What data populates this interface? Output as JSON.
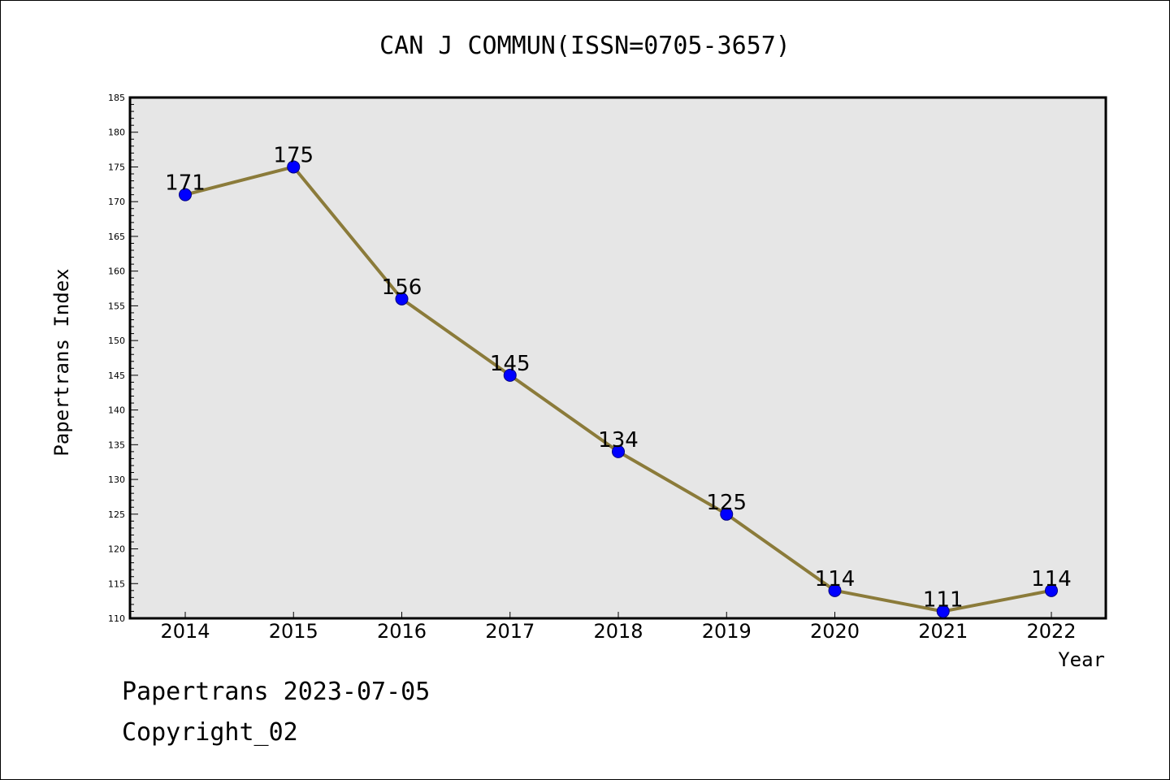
{
  "chart_data": {
    "type": "line",
    "title": "CAN J COMMUN(ISSN=0705-3657)",
    "xlabel": "Year",
    "ylabel": "Papertrans Index",
    "x": [
      "2014",
      "2015",
      "2016",
      "2017",
      "2018",
      "2019",
      "2020",
      "2021",
      "2022"
    ],
    "series": [
      {
        "values": [
          171,
          175,
          156,
          145,
          134,
          125,
          114,
          111,
          114
        ]
      }
    ],
    "data_labels": [
      "171",
      "175",
      "156",
      "145",
      "134",
      "125",
      "114",
      "111",
      "114"
    ],
    "ylim": [
      110,
      185
    ],
    "yticks": [
      110,
      115,
      120,
      125,
      130,
      135,
      140,
      145,
      150,
      155,
      160,
      165,
      170,
      175,
      180,
      185
    ],
    "ytick_labels": [
      "110",
      "115",
      "120",
      "125",
      "130",
      "135",
      "140",
      "145",
      "150",
      "155",
      "160",
      "165",
      "170",
      "175",
      "180",
      "185"
    ],
    "grid": false,
    "legend": "none",
    "colors": {
      "plot_background": "#e6e6e6",
      "line": "#8b7b3a",
      "marker_fill": "#0000ff",
      "marker_stroke": "#000080"
    }
  },
  "footer": {
    "line1": "Papertrans 2023-07-05",
    "line2": "Copyright_02"
  }
}
